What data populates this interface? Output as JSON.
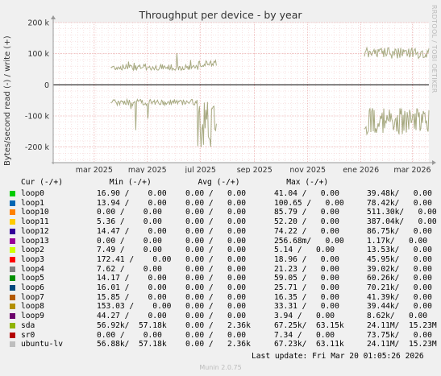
{
  "chart_data": {
    "type": "line",
    "title": "Throughput per device - by year",
    "ylabel": "Bytes/second read (-) / write (+)",
    "ylim": [
      -250000,
      200000
    ],
    "y_ticks": [
      "200 k",
      "100 k",
      "0",
      "-100 k",
      "-200 k"
    ],
    "y_tick_values": [
      200000,
      100000,
      0,
      -100000,
      -200000
    ],
    "x_ticks": [
      "mar 2025",
      "may 2025",
      "jul 2025",
      "sep 2025",
      "nov 2025",
      "ene 2026",
      "mar 2026"
    ],
    "grid": true,
    "series": [
      {
        "name": "sda",
        "color": "#A8AA82",
        "segments": [
          {
            "start": "2025-03-20",
            "end": "2025-07-20",
            "write_level": 55000,
            "read_level": -55000,
            "spike_write": 110000,
            "spike_read": -200000
          },
          {
            "start": "2026-01-05",
            "end": "2026-03-20",
            "write_level": 95000,
            "read_level": -75000,
            "spike_write": 130000,
            "spike_read": -160000
          }
        ]
      }
    ]
  },
  "legend_header": "Cur (-/+)          Min (-/+)          Avg (-/+)          Max (-/+)",
  "legend": [
    {
      "name": "loop0",
      "color": "#00CC00",
      "cur": "16.90 /    0.00",
      "min": "0.00 /   0.00",
      "avg": "41.04 /   0.00",
      "max": "39.48k/   0.00"
    },
    {
      "name": "loop1",
      "color": "#0066B3",
      "cur": "13.94 /    0.00",
      "min": "0.00 /   0.00",
      "avg": "100.65 /   0.00",
      "max": "78.42k/   0.00"
    },
    {
      "name": "loop10",
      "color": "#FF8000",
      "cur": "0.00 /    0.00",
      "min": "0.00 /   0.00",
      "avg": "85.79 /   0.00",
      "max": "511.30k/   0.00"
    },
    {
      "name": "loop11",
      "color": "#FFCC00",
      "cur": "5.36 /    0.00",
      "min": "0.00 /   0.00",
      "avg": "52.20 /   0.00",
      "max": "387.04k/   0.00"
    },
    {
      "name": "loop12",
      "color": "#330099",
      "cur": "14.47 /    0.00",
      "min": "0.00 /   0.00",
      "avg": "74.22 /   0.00",
      "max": "86.75k/   0.00"
    },
    {
      "name": "loop13",
      "color": "#990099",
      "cur": "0.00 /    0.00",
      "min": "0.00 /   0.00",
      "avg": "256.68m/   0.00",
      "max": "1.17k/   0.00"
    },
    {
      "name": "loop2",
      "color": "#CCFF00",
      "cur": "7.49 /    0.00",
      "min": "0.00 /   0.00",
      "avg": "5.14 /   0.00",
      "max": "13.53k/   0.00"
    },
    {
      "name": "loop3",
      "color": "#FF0000",
      "cur": "172.41 /    0.00",
      "min": "0.00 /   0.00",
      "avg": "18.96 /   0.00",
      "max": "45.95k/   0.00"
    },
    {
      "name": "loop4",
      "color": "#808080",
      "cur": "7.62 /    0.00",
      "min": "0.00 /   0.00",
      "avg": "21.23 /   0.00",
      "max": "39.02k/   0.00"
    },
    {
      "name": "loop5",
      "color": "#008F00",
      "cur": "14.17 /    0.00",
      "min": "0.00 /   0.00",
      "avg": "59.05 /   0.00",
      "max": "60.26k/   0.00"
    },
    {
      "name": "loop6",
      "color": "#00487D",
      "cur": "16.01 /    0.00",
      "min": "0.00 /   0.00",
      "avg": "25.71 /   0.00",
      "max": "70.21k/   0.00"
    },
    {
      "name": "loop7",
      "color": "#B35A00",
      "cur": "15.85 /    0.00",
      "min": "0.00 /   0.00",
      "avg": "16.35 /   0.00",
      "max": "41.39k/   0.00"
    },
    {
      "name": "loop8",
      "color": "#B38F00",
      "cur": "153.03 /    0.00",
      "min": "0.00 /   0.00",
      "avg": "33.31 /   0.00",
      "max": "39.44k/   0.00"
    },
    {
      "name": "loop9",
      "color": "#6B006B",
      "cur": "44.27 /    0.00",
      "min": "0.00 /   0.00",
      "avg": "3.94 /   0.00",
      "max": "8.62k/   0.00"
    },
    {
      "name": "sda",
      "color": "#8FB300",
      "cur": "56.92k/  57.18k",
      "min": "0.00 /   2.36k",
      "avg": "67.25k/  63.15k",
      "max": "24.11M/  15.23M"
    },
    {
      "name": "sr0",
      "color": "#B30000",
      "cur": "0.00 /    0.00",
      "min": "0.00 /   0.00",
      "avg": "7.34 /   0.00",
      "max": "73.75k/   0.00"
    },
    {
      "name": "ubuntu-lv",
      "color": "#BEBEBE",
      "cur": "56.88k/  57.18k",
      "min": "0.00 /   2.36k",
      "avg": "67.23k/  63.11k",
      "max": "24.11M/  15.23M"
    }
  ],
  "last_update": "Last update: Fri Mar 20 01:05:26 2026",
  "watermark": "RRDTOOL / TOBI OETIKER",
  "footer": "Munin 2.0.75"
}
